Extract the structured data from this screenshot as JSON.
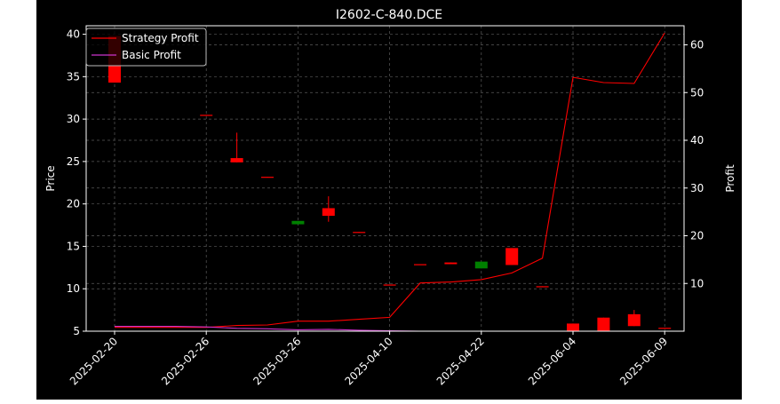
{
  "chart_data": {
    "type": "candlestick+line",
    "title": "I2602-C-840.DCE",
    "xlabel": "",
    "ylabel_left": "Price",
    "ylabel_right": "Profit",
    "ylim_left": [
      5,
      41
    ],
    "ylim_right": [
      0,
      64
    ],
    "yticks_left": [
      5,
      10,
      15,
      20,
      25,
      30,
      35,
      40
    ],
    "yticks_right": [
      10,
      20,
      30,
      40,
      50,
      60
    ],
    "x_tick_labels": [
      "2025-02-20",
      "2025-02-26",
      "2025-03-26",
      "2025-04-10",
      "2025-04-22",
      "2025-06-04",
      "2025-06-09"
    ],
    "x_tick_positions": [
      0,
      3,
      6,
      9,
      12,
      15,
      18
    ],
    "grid": true,
    "legend_position": "top-left",
    "colors": {
      "up": "#008000",
      "down": "#ff0000",
      "strategy": "#ff0000",
      "basic": "#cc33cc",
      "grid": "#5a5a5a",
      "background": "#000000"
    },
    "candles": [
      {
        "i": 0,
        "open": 39.8,
        "close": 34.3,
        "high": 39.8,
        "low": 34.3
      },
      {
        "i": 3,
        "open": 30.5,
        "close": 30.4,
        "high": 30.5,
        "low": 30.4
      },
      {
        "i": 4,
        "open": 25.4,
        "close": 24.9,
        "high": 28.4,
        "low": 24.9
      },
      {
        "i": 5,
        "open": 23.2,
        "close": 23.1,
        "high": 23.2,
        "low": 23.1
      },
      {
        "i": 6,
        "open": 17.6,
        "close": 18.0,
        "high": 18.0,
        "low": 17.6
      },
      {
        "i": 7,
        "open": 19.5,
        "close": 18.6,
        "high": 20.9,
        "low": 17.9
      },
      {
        "i": 8,
        "open": 16.7,
        "close": 16.6,
        "high": 16.7,
        "low": 16.6
      },
      {
        "i": 9,
        "open": 10.5,
        "close": 10.4,
        "high": 10.5,
        "low": 10.4
      },
      {
        "i": 10,
        "open": 12.9,
        "close": 12.8,
        "high": 12.9,
        "low": 12.8
      },
      {
        "i": 11,
        "open": 13.1,
        "close": 12.9,
        "high": 13.1,
        "low": 12.9
      },
      {
        "i": 12,
        "open": 12.4,
        "close": 13.2,
        "high": 13.2,
        "low": 12.4
      },
      {
        "i": 13,
        "open": 14.8,
        "close": 12.8,
        "high": 14.8,
        "low": 12.8
      },
      {
        "i": 14,
        "open": 10.3,
        "close": 10.2,
        "high": 10.3,
        "low": 10.2
      },
      {
        "i": 15,
        "open": 5.9,
        "close": 5.0,
        "high": 5.9,
        "low": 5.0
      },
      {
        "i": 16,
        "open": 6.6,
        "close": 5.0,
        "high": 6.6,
        "low": 5.0
      },
      {
        "i": 17,
        "open": 7.0,
        "close": 5.6,
        "high": 7.5,
        "low": 5.6
      },
      {
        "i": 18,
        "open": 5.4,
        "close": 5.3,
        "high": 5.4,
        "low": 5.3
      }
    ],
    "series": [
      {
        "name": "Strategy Profit",
        "x": [
          0,
          1,
          2,
          3,
          4,
          5,
          6,
          7,
          8,
          9,
          10,
          11,
          12,
          13,
          14,
          15,
          16,
          17,
          18
        ],
        "values": [
          0.8,
          0.8,
          0.8,
          0.8,
          1.2,
          1.3,
          2.1,
          2.1,
          2.5,
          2.9,
          10.1,
          10.3,
          10.8,
          12.2,
          15.3,
          53.2,
          52.1,
          51.9,
          62.5
        ]
      },
      {
        "name": "Basic Profit",
        "x": [
          0,
          1,
          2,
          3,
          4,
          5,
          6,
          7,
          8,
          9,
          10,
          11,
          12,
          13,
          14,
          15,
          16,
          17,
          18
        ],
        "values": [
          1.0,
          1.0,
          1.0,
          0.9,
          0.6,
          0.5,
          0.3,
          0.4,
          0.2,
          0.1,
          0.0,
          0.0,
          0.0,
          0.0,
          0.0,
          0.0,
          0.0,
          0.0,
          0.0
        ]
      }
    ]
  }
}
